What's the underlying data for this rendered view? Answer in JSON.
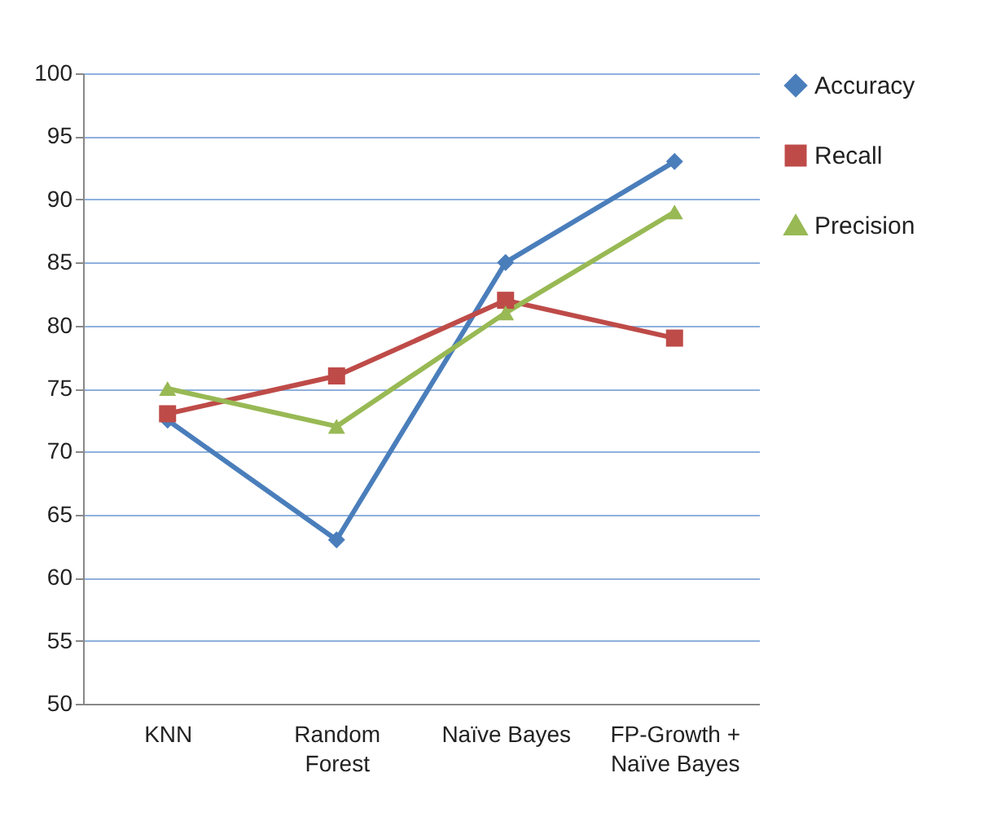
{
  "chart_data": {
    "type": "line",
    "categories": [
      "KNN",
      "Random Forest",
      "Naïve Bayes",
      "FP-Growth + Naïve Bayes"
    ],
    "series": [
      {
        "name": "Accuracy",
        "color": "#4a7ebb",
        "marker": "diamond",
        "values": [
          72.5,
          63,
          85,
          93
        ]
      },
      {
        "name": "Recall",
        "color": "#be4b48",
        "marker": "square",
        "values": [
          73,
          76,
          82,
          79
        ]
      },
      {
        "name": "Precision",
        "color": "#98b954",
        "marker": "triangle",
        "values": [
          75,
          72,
          81,
          89
        ]
      }
    ],
    "ylim": [
      50,
      100
    ],
    "yticks": [
      50,
      55,
      60,
      65,
      70,
      75,
      80,
      85,
      90,
      95,
      100
    ],
    "grid": "y",
    "legend": "right",
    "line_style": "solid"
  }
}
